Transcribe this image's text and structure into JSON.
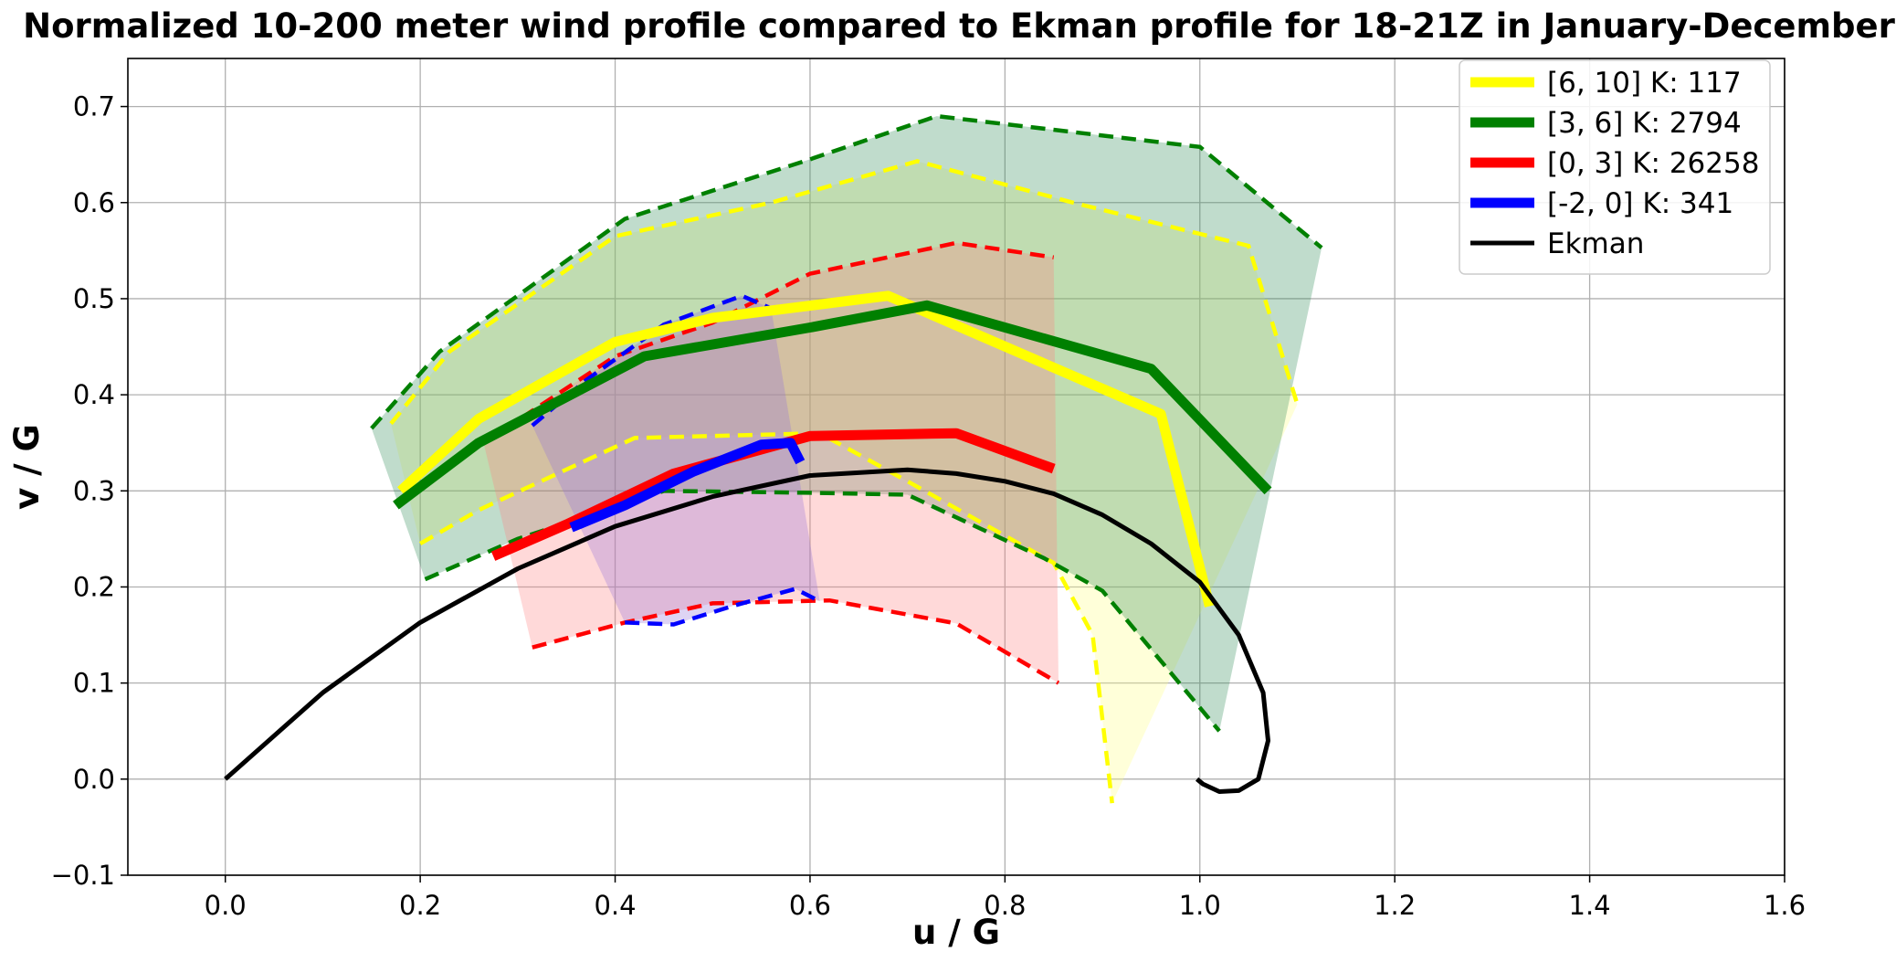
{
  "chart_data": {
    "type": "line",
    "title": "Normalized 10-200 meter wind profile compared to Ekman profile for 18-21Z in January-December",
    "xlabel": "u / G",
    "ylabel": "v / G",
    "xlim": [
      -0.1,
      1.6
    ],
    "ylim": [
      -0.1,
      0.75
    ],
    "xticks": [
      0.0,
      0.2,
      0.4,
      0.6,
      0.8,
      1.0,
      1.2,
      1.4,
      1.6
    ],
    "yticks": [
      -0.1,
      0.0,
      0.1,
      0.2,
      0.3,
      0.4,
      0.5,
      0.6,
      0.7
    ],
    "xtick_labels": [
      "0.0",
      "0.2",
      "0.4",
      "0.6",
      "0.8",
      "1.0",
      "1.2",
      "1.4",
      "1.6"
    ],
    "ytick_labels": [
      "−0.1",
      "0.0",
      "0.1",
      "0.2",
      "0.3",
      "0.4",
      "0.5",
      "0.6",
      "0.7"
    ],
    "grid": true,
    "legend_position": "top-right",
    "series": [
      {
        "name": "[6, 10] K:  117",
        "color": "#ffff00",
        "fill": "#ffff80",
        "mean": [
          [
            0.18,
            0.3
          ],
          [
            0.26,
            0.375
          ],
          [
            0.4,
            0.455
          ],
          [
            0.5,
            0.48
          ],
          [
            0.68,
            0.503
          ],
          [
            0.96,
            0.38
          ],
          [
            1.01,
            0.18
          ]
        ],
        "upper": [
          [
            0.17,
            0.37
          ],
          [
            0.23,
            0.445
          ],
          [
            0.4,
            0.565
          ],
          [
            0.56,
            0.6
          ],
          [
            0.71,
            0.643
          ],
          [
            0.87,
            0.6
          ],
          [
            1.05,
            0.555
          ],
          [
            1.1,
            0.39
          ]
        ],
        "lower": [
          [
            0.2,
            0.245
          ],
          [
            0.26,
            0.28
          ],
          [
            0.42,
            0.355
          ],
          [
            0.61,
            0.36
          ],
          [
            0.7,
            0.31
          ],
          [
            0.85,
            0.225
          ],
          [
            0.89,
            0.15
          ],
          [
            0.91,
            -0.025
          ]
        ]
      },
      {
        "name": "[3, 6] K:  2794",
        "color": "#008000",
        "fill": "#2e8b57",
        "mean": [
          [
            0.175,
            0.285
          ],
          [
            0.26,
            0.35
          ],
          [
            0.43,
            0.44
          ],
          [
            0.6,
            0.47
          ],
          [
            0.72,
            0.493
          ],
          [
            0.95,
            0.427
          ],
          [
            1.07,
            0.3
          ]
        ],
        "upper": [
          [
            0.15,
            0.365
          ],
          [
            0.22,
            0.445
          ],
          [
            0.41,
            0.583
          ],
          [
            0.6,
            0.645
          ],
          [
            0.73,
            0.69
          ],
          [
            1.0,
            0.658
          ],
          [
            1.125,
            0.553
          ]
        ],
        "lower": [
          [
            0.205,
            0.208
          ],
          [
            0.3,
            0.25
          ],
          [
            0.45,
            0.3
          ],
          [
            0.6,
            0.298
          ],
          [
            0.7,
            0.296
          ],
          [
            0.84,
            0.23
          ],
          [
            0.9,
            0.196
          ],
          [
            1.02,
            0.05
          ]
        ]
      },
      {
        "name": "[0, 3] K:  26258",
        "color": "#ff0000",
        "fill": "#ff8080",
        "mean": [
          [
            0.275,
            0.232
          ],
          [
            0.35,
            0.265
          ],
          [
            0.46,
            0.318
          ],
          [
            0.6,
            0.357
          ],
          [
            0.75,
            0.36
          ],
          [
            0.85,
            0.323
          ]
        ],
        "upper": [
          [
            0.265,
            0.35
          ],
          [
            0.4,
            0.44
          ],
          [
            0.5,
            0.475
          ],
          [
            0.6,
            0.526
          ],
          [
            0.75,
            0.558
          ],
          [
            0.85,
            0.543
          ]
        ],
        "lower": [
          [
            0.315,
            0.137
          ],
          [
            0.41,
            0.163
          ],
          [
            0.5,
            0.183
          ],
          [
            0.62,
            0.186
          ],
          [
            0.75,
            0.162
          ],
          [
            0.855,
            0.1
          ]
        ]
      },
      {
        "name": "[-2, 0] K:  341",
        "color": "#0000ff",
        "fill": "#9370db",
        "mean": [
          [
            0.355,
            0.262
          ],
          [
            0.41,
            0.285
          ],
          [
            0.48,
            0.32
          ],
          [
            0.55,
            0.348
          ],
          [
            0.58,
            0.35
          ],
          [
            0.59,
            0.33
          ]
        ],
        "upper": [
          [
            0.315,
            0.368
          ],
          [
            0.37,
            0.415
          ],
          [
            0.45,
            0.473
          ],
          [
            0.53,
            0.503
          ],
          [
            0.56,
            0.49
          ]
        ],
        "lower": [
          [
            0.41,
            0.163
          ],
          [
            0.46,
            0.161
          ],
          [
            0.52,
            0.18
          ],
          [
            0.585,
            0.198
          ],
          [
            0.61,
            0.185
          ]
        ]
      },
      {
        "name": "Ekman",
        "color": "#000000",
        "mean": [
          [
            0.0,
            0.0
          ],
          [
            0.1,
            0.09
          ],
          [
            0.2,
            0.163
          ],
          [
            0.3,
            0.219
          ],
          [
            0.4,
            0.263
          ],
          [
            0.5,
            0.294
          ],
          [
            0.6,
            0.316
          ],
          [
            0.7,
            0.322
          ],
          [
            0.75,
            0.318
          ],
          [
            0.8,
            0.31
          ],
          [
            0.85,
            0.297
          ],
          [
            0.9,
            0.275
          ],
          [
            0.95,
            0.245
          ],
          [
            1.0,
            0.205
          ],
          [
            1.04,
            0.15
          ],
          [
            1.065,
            0.09
          ],
          [
            1.07,
            0.04
          ],
          [
            1.06,
            0.0
          ],
          [
            1.04,
            -0.012
          ],
          [
            1.02,
            -0.013
          ],
          [
            1.003,
            -0.005
          ],
          [
            0.997,
            0.0
          ]
        ]
      }
    ]
  }
}
